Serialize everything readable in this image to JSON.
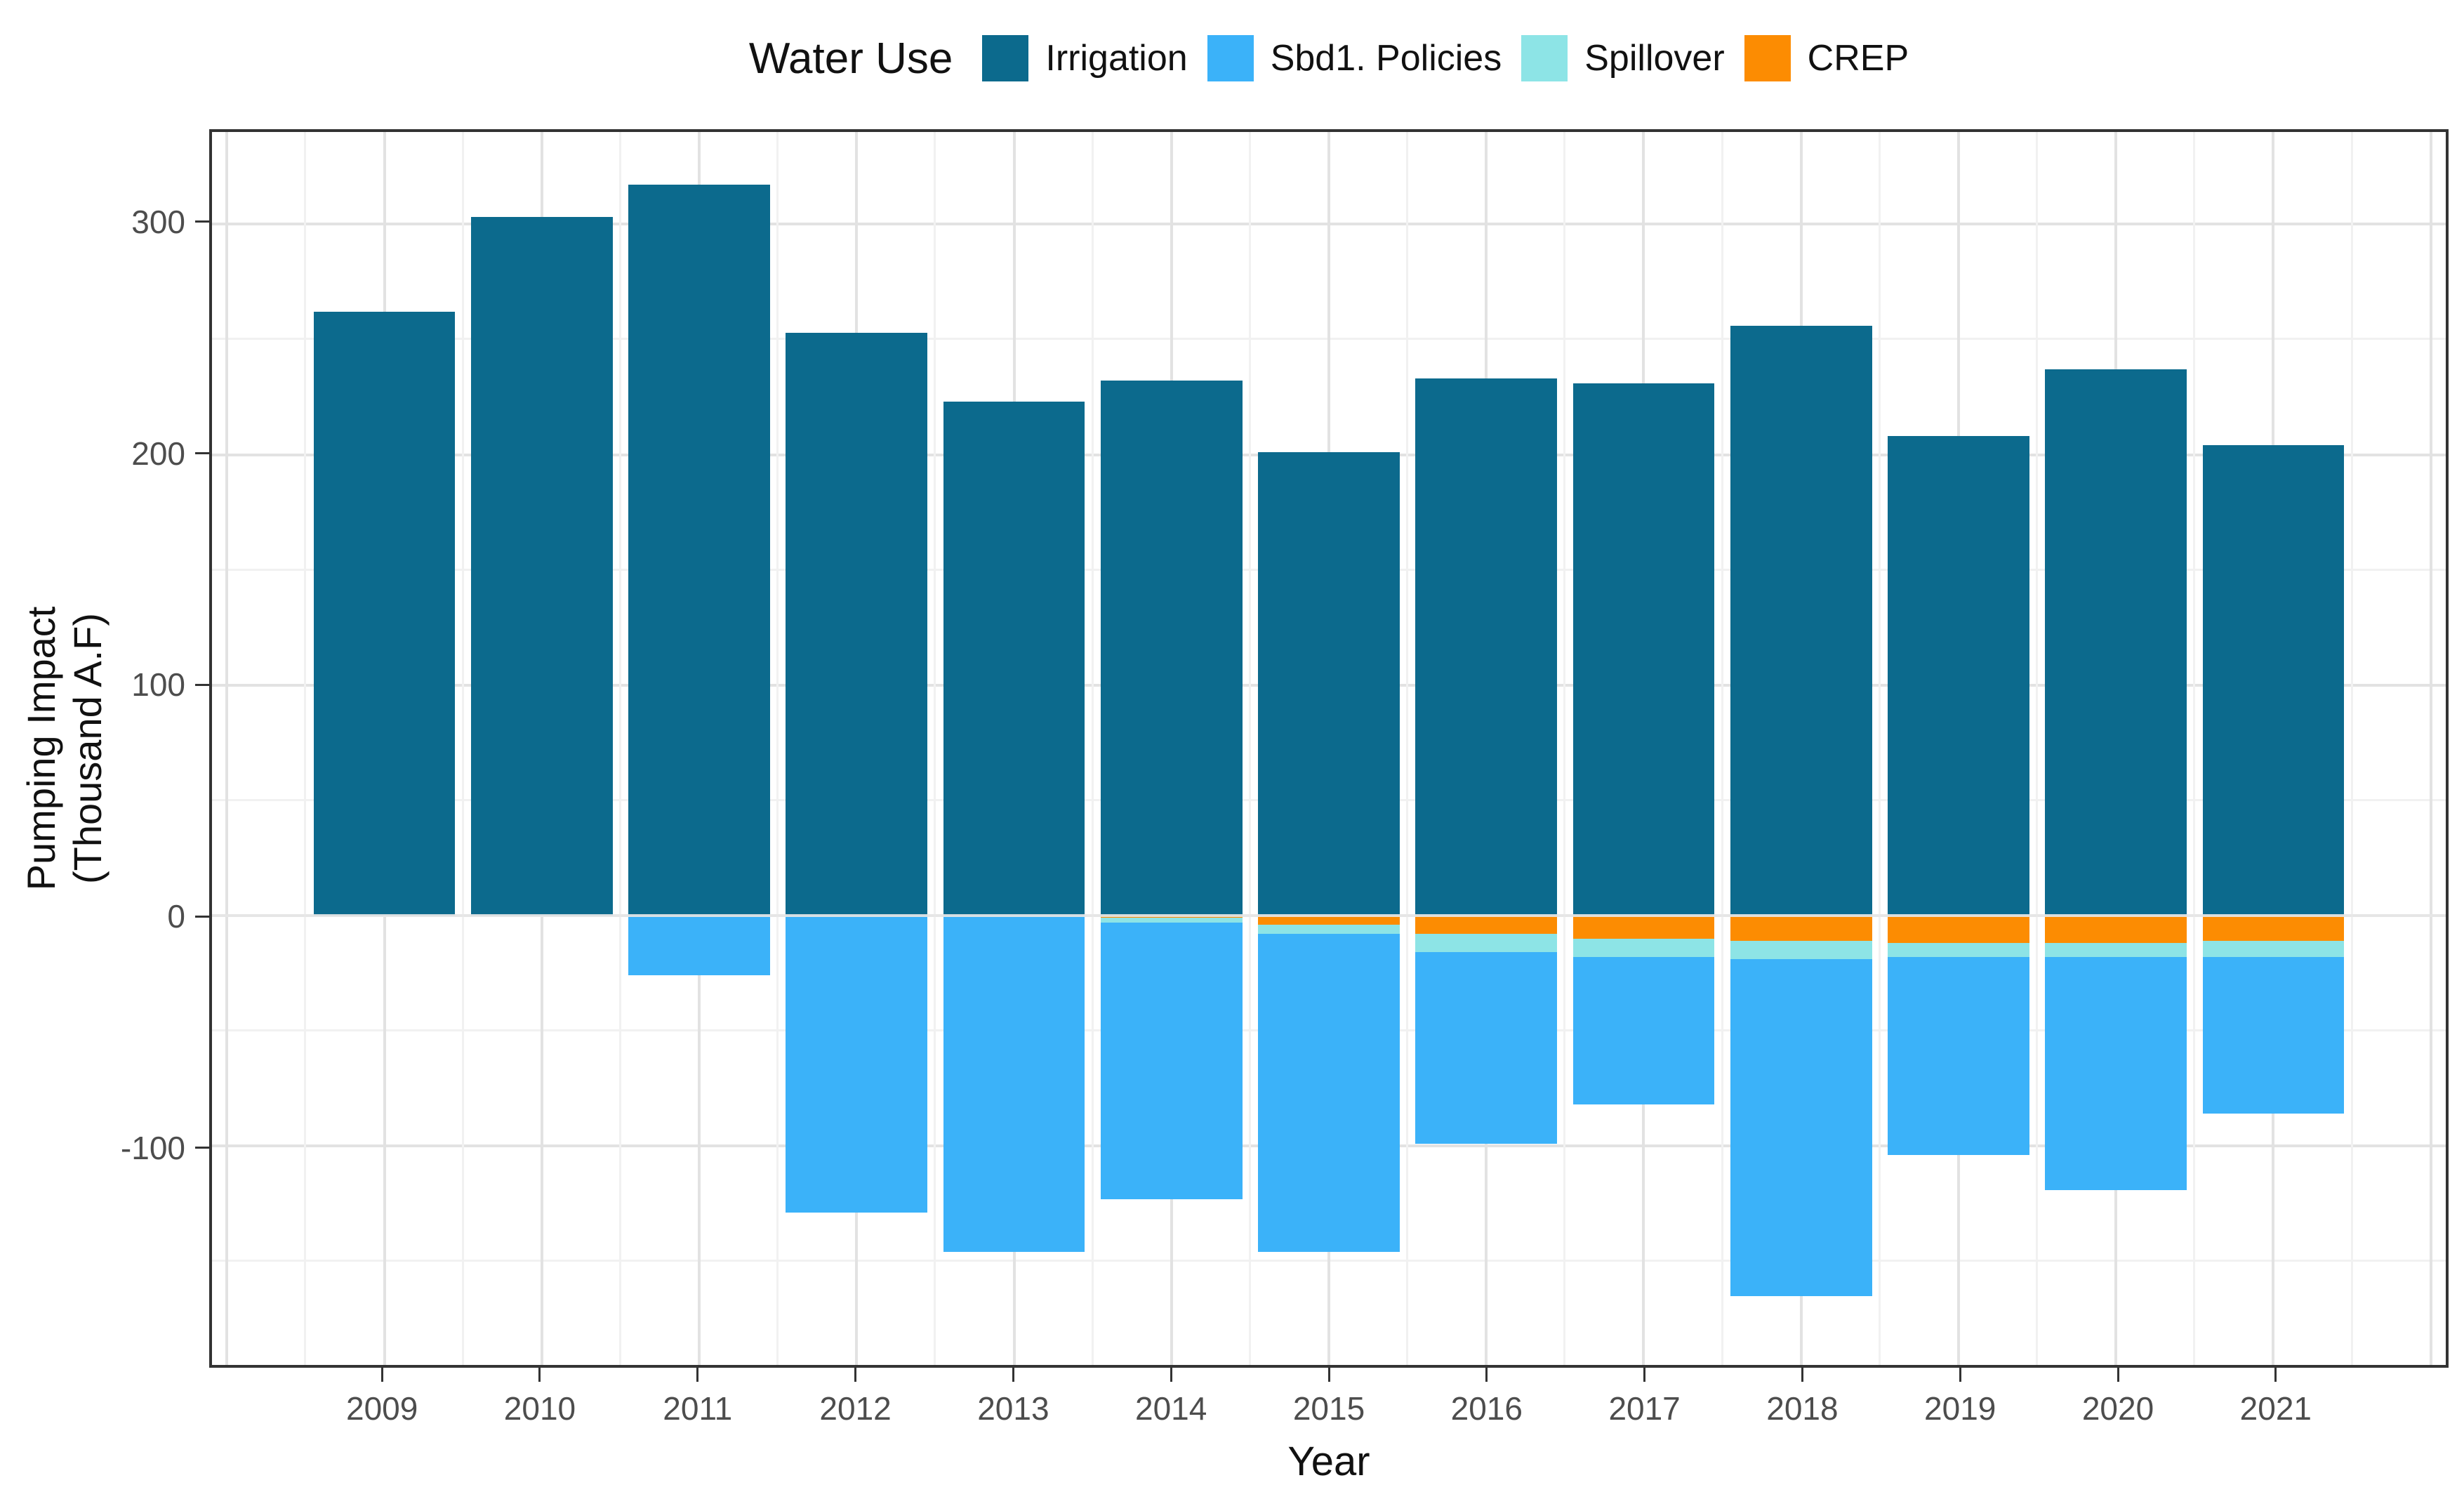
{
  "legend": {
    "title": "Water Use",
    "items": [
      {
        "label": "Irrigation",
        "color": "#0c6a8d"
      },
      {
        "label": "Sbd1. Policies",
        "color": "#3bb2f9"
      },
      {
        "label": "Spillover",
        "color": "#8de4e6"
      },
      {
        "label": "CREP",
        "color": "#fc8c02"
      }
    ]
  },
  "axes": {
    "y_title_line1": "Pumping Impact",
    "y_title_line2": "(Thousand A.F)",
    "x_title": "Year",
    "y_major_ticks": [
      300,
      200,
      100,
      0,
      -100
    ],
    "y_minor_ticks": [
      250,
      150,
      50,
      -50,
      -150
    ]
  },
  "chart_data": {
    "type": "bar",
    "stacked": true,
    "title": "",
    "xlabel": "Year",
    "ylabel": "Pumping Impact (Thousand A.F)",
    "legend_title": "Water Use",
    "legend_position": "top",
    "grid": true,
    "categories": [
      2009,
      2010,
      2011,
      2012,
      2013,
      2014,
      2015,
      2016,
      2017,
      2018,
      2019,
      2020,
      2021
    ],
    "series": [
      {
        "name": "Irrigation",
        "color": "#0c6a8d",
        "values": [
          262,
          303,
          317,
          253,
          223,
          232,
          201,
          233,
          231,
          256,
          208,
          237,
          204
        ]
      },
      {
        "name": "Sbd1. Policies",
        "color": "#3bb2f9",
        "values": [
          0,
          0,
          -26,
          -129,
          -146,
          -120,
          -138,
          -83,
          -64,
          -146,
          -86,
          -101,
          -68
        ]
      },
      {
        "name": "Spillover",
        "color": "#8de4e6",
        "values": [
          0,
          0,
          0,
          0,
          0,
          -2,
          -4,
          -8,
          -8,
          -8,
          -6,
          -6,
          -7
        ]
      },
      {
        "name": "CREP",
        "color": "#fc8c02",
        "values": [
          0,
          0,
          0,
          0,
          0,
          -1,
          -4,
          -8,
          -10,
          -11,
          -12,
          -12,
          -11
        ]
      }
    ],
    "stack_order_below_zero": [
      "CREP",
      "Spillover",
      "Sbd1. Policies"
    ],
    "ylim": [
      -195,
      340
    ],
    "xlim": [
      2007.905,
      2022.095
    ],
    "x_major_gridlines": [
      2008,
      2009,
      2010,
      2011,
      2012,
      2013,
      2014,
      2015,
      2016,
      2017,
      2018,
      2019,
      2020,
      2021,
      2022
    ],
    "x_minor_gridlines": [
      2008.5,
      2009.5,
      2010.5,
      2011.5,
      2012.5,
      2013.5,
      2014.5,
      2015.5,
      2016.5,
      2017.5,
      2018.5,
      2019.5,
      2020.5,
      2021.5
    ],
    "bar_width": 0.9
  }
}
